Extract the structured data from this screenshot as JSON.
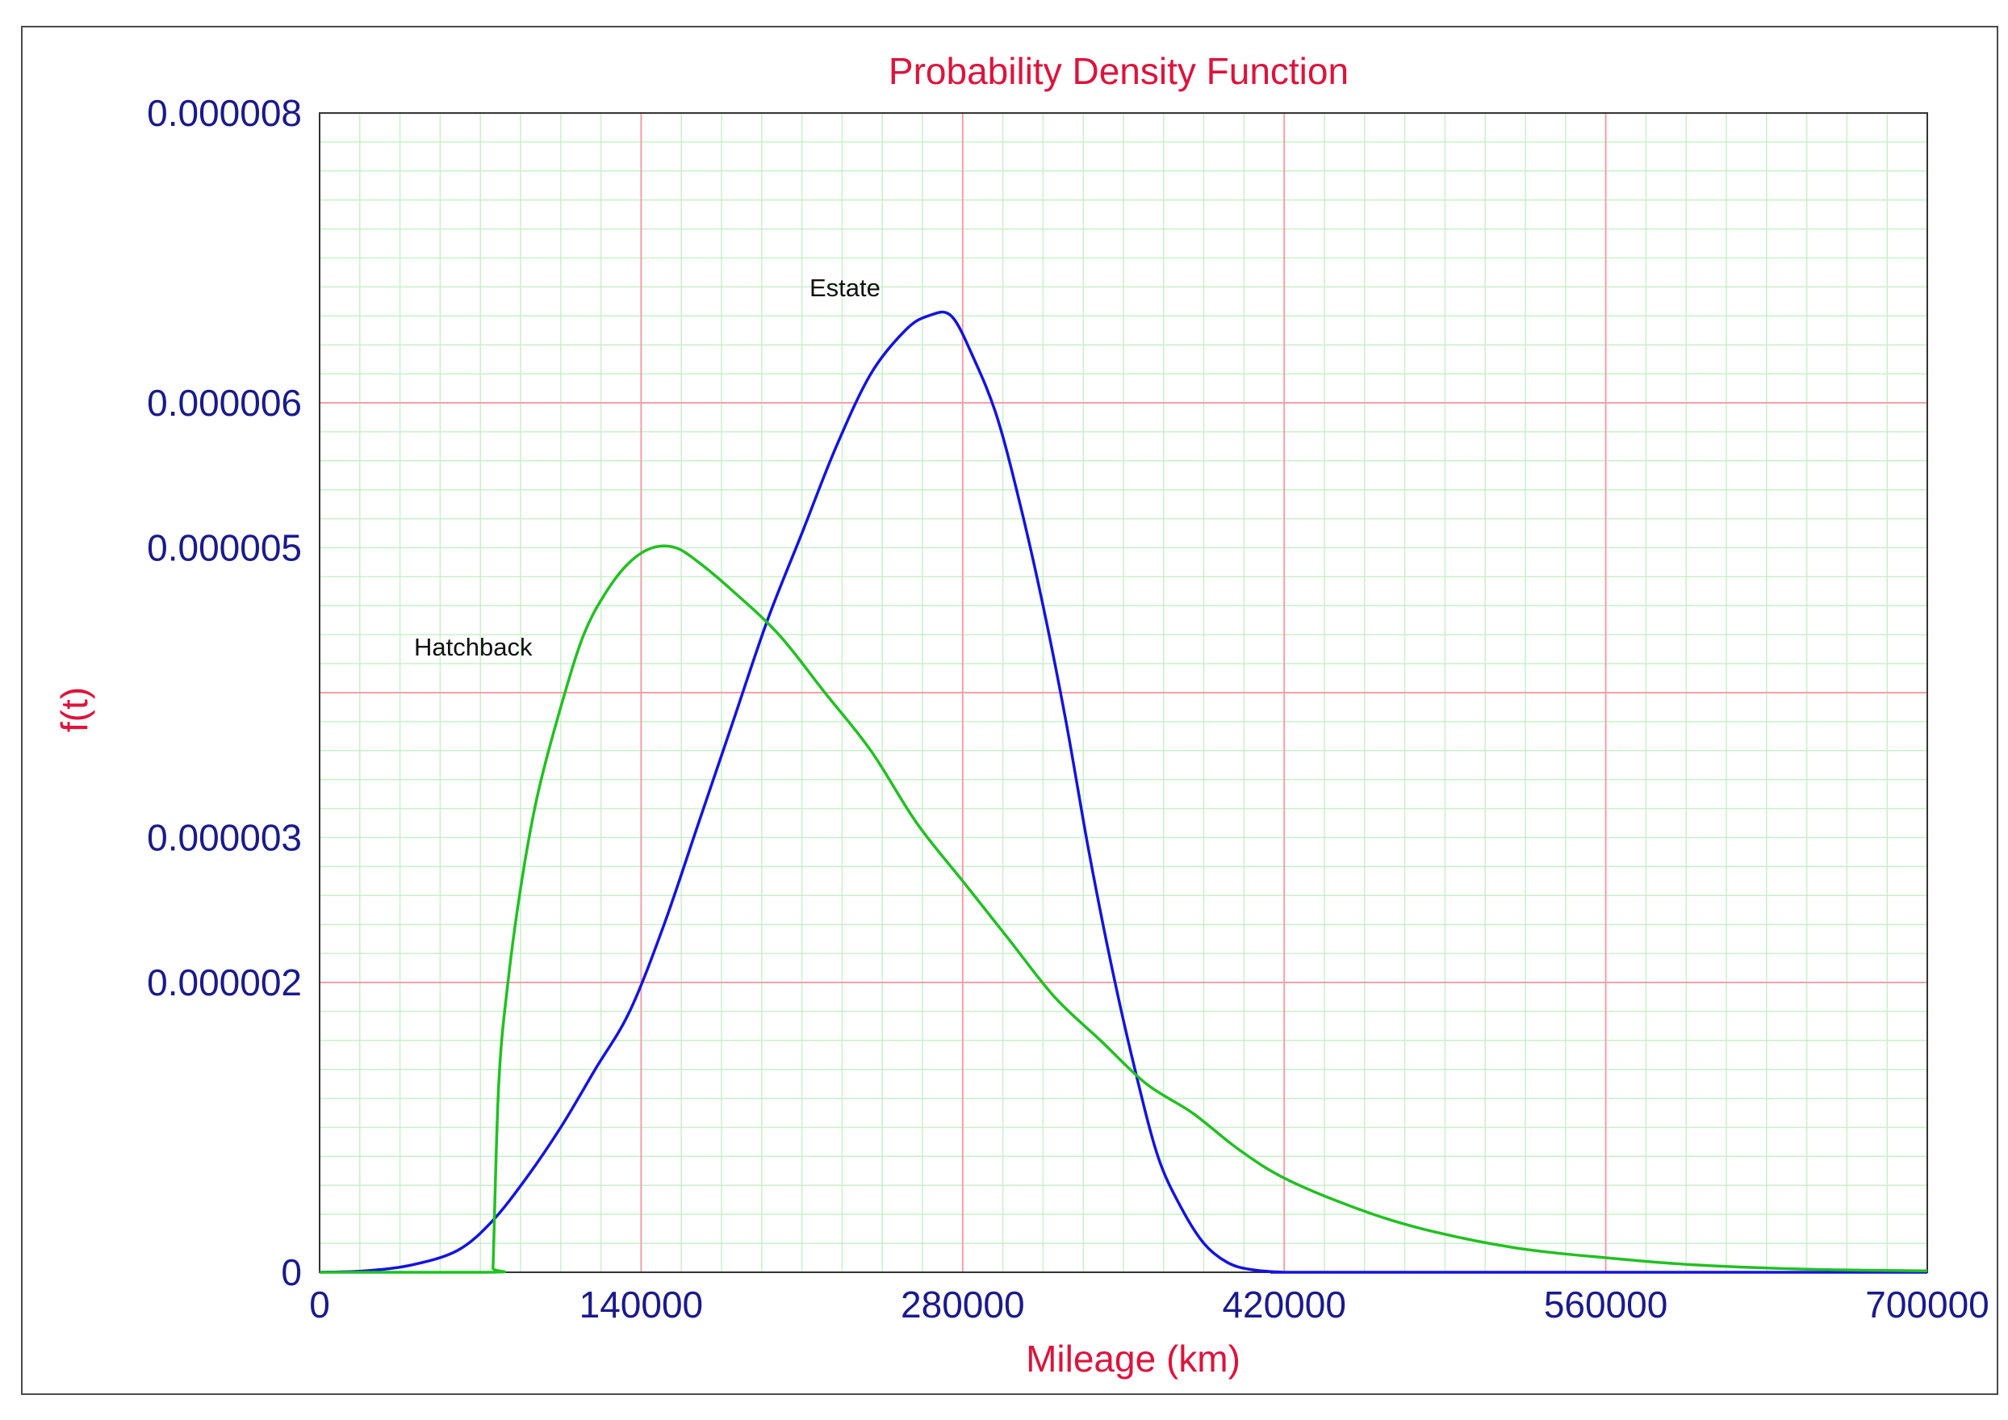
{
  "chart_data": {
    "type": "line",
    "title": "Probability Density Function",
    "xlabel": "Mileage (km)",
    "ylabel": "f(t)",
    "xlim": [
      0,
      700000
    ],
    "ylim": [
      0,
      8e-06
    ],
    "x_ticks": [
      {
        "value": 0,
        "label": "0"
      },
      {
        "value": 140000,
        "label": "140000"
      },
      {
        "value": 280000,
        "label": "280000"
      },
      {
        "value": 420000,
        "label": "420000"
      },
      {
        "value": 560000,
        "label": "560000"
      },
      {
        "value": 700000,
        "label": "700000"
      }
    ],
    "y_ticks": [
      {
        "value": 0,
        "label": "0"
      },
      {
        "value": 2e-06,
        "label": "0.000002"
      },
      {
        "value": 3e-06,
        "label": "0.000003"
      },
      {
        "value": 5e-06,
        "label": "0.000005"
      },
      {
        "value": 6e-06,
        "label": "0.000006"
      },
      {
        "value": 8e-06,
        "label": "0.000008"
      }
    ],
    "grid": true,
    "series": [
      {
        "name": "Estate",
        "color": "#1414dc",
        "x": [
          0,
          20000,
          40000,
          60000,
          75000,
          90000,
          105000,
          120000,
          135000,
          150000,
          165000,
          180000,
          195000,
          210000,
          225000,
          240000,
          255000,
          265000,
          275000,
          285000,
          295000,
          305000,
          315000,
          325000,
          335000,
          345000,
          355000,
          365000,
          375000,
          385000,
          395000,
          405000,
          420000,
          440000,
          700000
        ],
        "y": [
          0,
          1e-08,
          5e-08,
          1.5e-07,
          3.5e-07,
          6.5e-07,
          1e-06,
          1.4e-06,
          1.8e-06,
          2.4e-06,
          3.1e-06,
          3.8e-06,
          4.5e-06,
          5.1e-06,
          5.7e-06,
          6.2e-06,
          6.5e-06,
          6.6e-06,
          6.6e-06,
          6.3e-06,
          5.9e-06,
          5.3e-06,
          4.6e-06,
          3.8e-06,
          2.9e-06,
          2.1e-06,
          1.4e-06,
          8e-07,
          4.5e-07,
          2e-07,
          7e-08,
          2e-08,
          0,
          0,
          0
        ]
      },
      {
        "name": "Hatchback",
        "color": "#22c022",
        "x": [
          0,
          75000,
          75500,
          78000,
          82000,
          88000,
          95000,
          105000,
          115000,
          125000,
          135000,
          145000,
          155000,
          165000,
          180000,
          200000,
          220000,
          240000,
          260000,
          280000,
          300000,
          320000,
          340000,
          360000,
          380000,
          400000,
          420000,
          450000,
          480000,
          520000,
          560000,
          600000,
          650000,
          700000
        ],
        "y": [
          0,
          0,
          3e-08,
          1.3e-06,
          2e-06,
          2.7e-06,
          3.3e-06,
          3.9e-06,
          4.4e-06,
          4.7e-06,
          4.9e-06,
          5e-06,
          5e-06,
          4.9e-06,
          4.7e-06,
          4.4e-06,
          4e-06,
          3.6e-06,
          3.1e-06,
          2.7e-06,
          2.3e-06,
          1.9e-06,
          1.6e-06,
          1.3e-06,
          1.1e-06,
          8.5e-07,
          6.5e-07,
          4.5e-07,
          3e-07,
          1.7e-07,
          1e-07,
          5e-08,
          2e-08,
          1e-08
        ]
      }
    ]
  }
}
